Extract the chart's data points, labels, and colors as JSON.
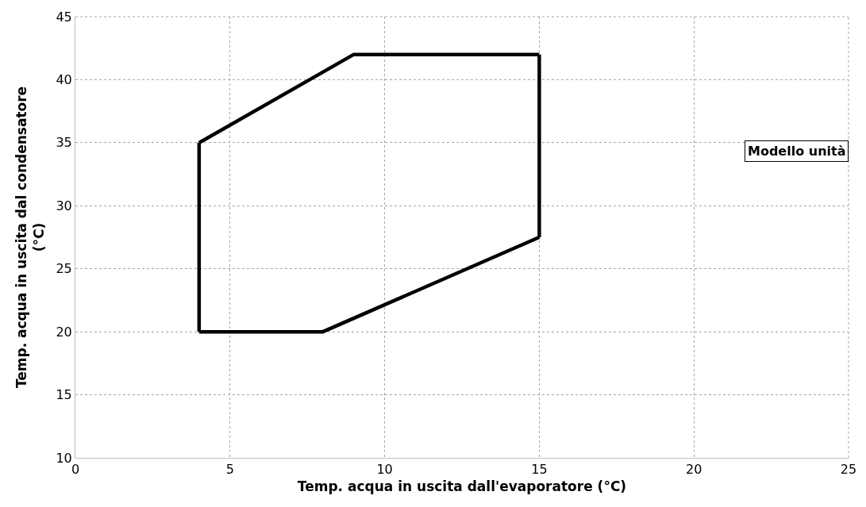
{
  "chart_data": {
    "type": "line",
    "xlabel": "Temp. acqua in uscita dall'evaporatore (°C)",
    "ylabel": "Temp. acqua in uscita dal condensatore (°C)",
    "series": [
      {
        "color": "#000000",
        "x": [
          4,
          4
        ],
        "values": [
          20,
          35
        ]
      },
      {
        "color": "#000000",
        "x": [
          4,
          9,
          15
        ],
        "values": [
          35,
          42,
          42
        ]
      },
      {
        "color": "#000000",
        "x": [
          15,
          15
        ],
        "values": [
          42,
          27.5
        ]
      },
      {
        "color": "#000000",
        "x": [
          4,
          8,
          15
        ],
        "values": [
          20,
          20,
          27.5
        ]
      }
    ],
    "xlim": [
      0,
      25
    ],
    "xticks": [
      0,
      5,
      10,
      15,
      20,
      25
    ],
    "ylim": [
      10,
      45
    ],
    "yticks": [
      10,
      15,
      20,
      25,
      30,
      35,
      40,
      45
    ],
    "grid": true,
    "marker": "none",
    "line_style": "solid",
    "annotations": [
      "Modello unità"
    ]
  }
}
